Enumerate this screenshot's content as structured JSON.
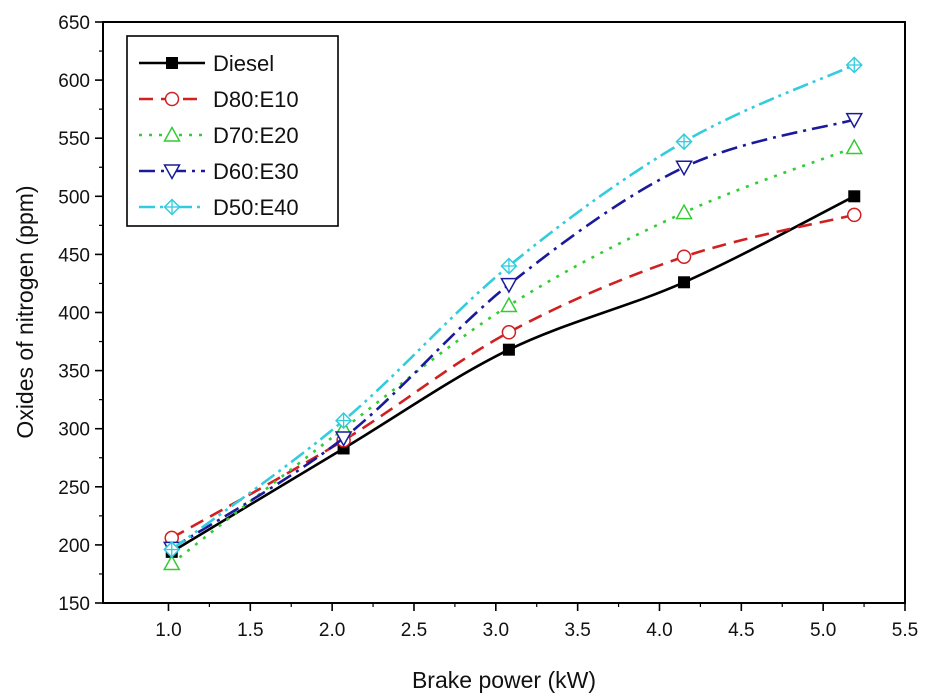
{
  "chart_data": {
    "type": "line",
    "xlabel": "Brake power (kW)",
    "ylabel": "Oxides of nitrogen (ppm)",
    "xlim": [
      0.6,
      5.5
    ],
    "ylim": [
      150,
      650
    ],
    "xticks": [
      1.0,
      1.5,
      2.0,
      2.5,
      3.0,
      3.5,
      4.0,
      4.5,
      5.0,
      5.5
    ],
    "yticks": [
      150,
      200,
      250,
      300,
      350,
      400,
      450,
      500,
      550,
      600,
      650
    ],
    "xtick_labels": [
      "1.0",
      "1.5",
      "2.0",
      "2.5",
      "3.0",
      "3.5",
      "4.0",
      "4.5",
      "5.0",
      "5.5"
    ],
    "ytick_labels": [
      "150",
      "200",
      "250",
      "300",
      "350",
      "400",
      "450",
      "500",
      "550",
      "600",
      "650"
    ],
    "x": [
      1.02,
      2.07,
      3.08,
      4.15,
      5.19
    ],
    "legend_position": "top-left",
    "grid": false,
    "series": [
      {
        "name": "Diesel",
        "values": [
          194,
          283,
          368,
          426,
          500
        ],
        "color": "#000000",
        "marker": "filled-square",
        "dash": "solid"
      },
      {
        "name": "D80:E10",
        "values": [
          206,
          290,
          383,
          448,
          484
        ],
        "color": "#d02020",
        "marker": "open-circle",
        "dash": "dash"
      },
      {
        "name": "D70:E20",
        "values": [
          184,
          300,
          406,
          486,
          542
        ],
        "color": "#33cc33",
        "marker": "open-triangle-up",
        "dash": "dot"
      },
      {
        "name": "D60:E30",
        "values": [
          197,
          292,
          424,
          525,
          566
        ],
        "color": "#1a1a9a",
        "marker": "open-triangle-down",
        "dash": "dashdot"
      },
      {
        "name": "D50:E40",
        "values": [
          196,
          307,
          440,
          547,
          613
        ],
        "color": "#33ccdd",
        "marker": "crosshair-diamond",
        "dash": "dashdotdot"
      }
    ]
  }
}
